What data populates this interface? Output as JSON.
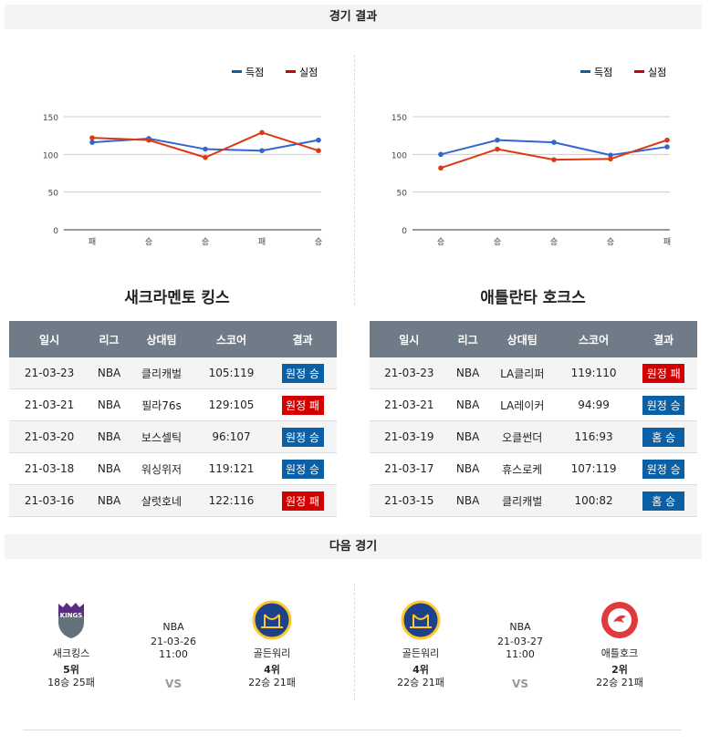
{
  "sections": {
    "results": "경기 결과",
    "next": "다음 경기"
  },
  "legend": {
    "scored": "득점",
    "allowed": "실점"
  },
  "colors": {
    "scored": "#3366cc",
    "allowed": "#dc3912",
    "win": "#0b5fa5",
    "loss": "#d40000",
    "header": "#6f7c87"
  },
  "columns": [
    "일시",
    "리그",
    "상대팀",
    "스코어",
    "결과"
  ],
  "teams": [
    {
      "name": "새크라멘토 킹스",
      "chart_data": {
        "type": "line",
        "categories": [
          "패",
          "승",
          "승",
          "패",
          "승"
        ],
        "ylim": [
          0,
          150
        ],
        "yticks": [
          0,
          50,
          100,
          150
        ],
        "series": [
          {
            "name": "득점",
            "values": [
              116,
              121,
              107,
              105,
              119
            ]
          },
          {
            "name": "실점",
            "values": [
              122,
              119,
              96,
              129,
              105
            ]
          }
        ]
      },
      "rows": [
        {
          "date": "21-03-23",
          "league": "NBA",
          "opp": "클리캐벌",
          "score": "105:119",
          "result": "원정 승",
          "win": true
        },
        {
          "date": "21-03-21",
          "league": "NBA",
          "opp": "필라76s",
          "score": "129:105",
          "result": "원정 패",
          "win": false
        },
        {
          "date": "21-03-20",
          "league": "NBA",
          "opp": "보스셀틱",
          "score": "96:107",
          "result": "원정 승",
          "win": true
        },
        {
          "date": "21-03-18",
          "league": "NBA",
          "opp": "워싱위저",
          "score": "119:121",
          "result": "원정 승",
          "win": true
        },
        {
          "date": "21-03-16",
          "league": "NBA",
          "opp": "샬럿호네",
          "score": "122:116",
          "result": "원정 패",
          "win": false
        }
      ]
    },
    {
      "name": "애틀란타 호크스",
      "chart_data": {
        "type": "line",
        "categories": [
          "승",
          "승",
          "승",
          "승",
          "패"
        ],
        "ylim": [
          0,
          150
        ],
        "yticks": [
          0,
          50,
          100,
          150
        ],
        "series": [
          {
            "name": "득점",
            "values": [
              100,
              119,
              116,
              99,
              110
            ]
          },
          {
            "name": "실점",
            "values": [
              82,
              107,
              93,
              94,
              119
            ]
          }
        ]
      },
      "rows": [
        {
          "date": "21-03-23",
          "league": "NBA",
          "opp": "LA클리퍼",
          "score": "119:110",
          "result": "원정 패",
          "win": false
        },
        {
          "date": "21-03-21",
          "league": "NBA",
          "opp": "LA레이커",
          "score": "94:99",
          "result": "원정 승",
          "win": true
        },
        {
          "date": "21-03-19",
          "league": "NBA",
          "opp": "오클썬더",
          "score": "116:93",
          "result": "홈 승",
          "win": true
        },
        {
          "date": "21-03-17",
          "league": "NBA",
          "opp": "휴스로케",
          "score": "107:119",
          "result": "원정 승",
          "win": true
        },
        {
          "date": "21-03-15",
          "league": "NBA",
          "opp": "클리캐벌",
          "score": "100:82",
          "result": "홈 승",
          "win": true
        }
      ]
    }
  ],
  "next_games": [
    {
      "league": "NBA",
      "datetime": "21-03-26 11:00",
      "vs": "VS",
      "home": {
        "name": "새크킹스",
        "rank": "5위",
        "record": "18승 25패",
        "logo": "KINGS"
      },
      "away": {
        "name": "골든워리",
        "rank": "4위",
        "record": "22승 21패",
        "logo": "GSW"
      }
    },
    {
      "league": "NBA",
      "datetime": "21-03-27 11:00",
      "vs": "VS",
      "home": {
        "name": "골든워리",
        "rank": "4위",
        "record": "22승 21패",
        "logo": "GSW"
      },
      "away": {
        "name": "애틀호크",
        "rank": "2위",
        "record": "22승 21패",
        "logo": "HAWKS"
      }
    }
  ]
}
